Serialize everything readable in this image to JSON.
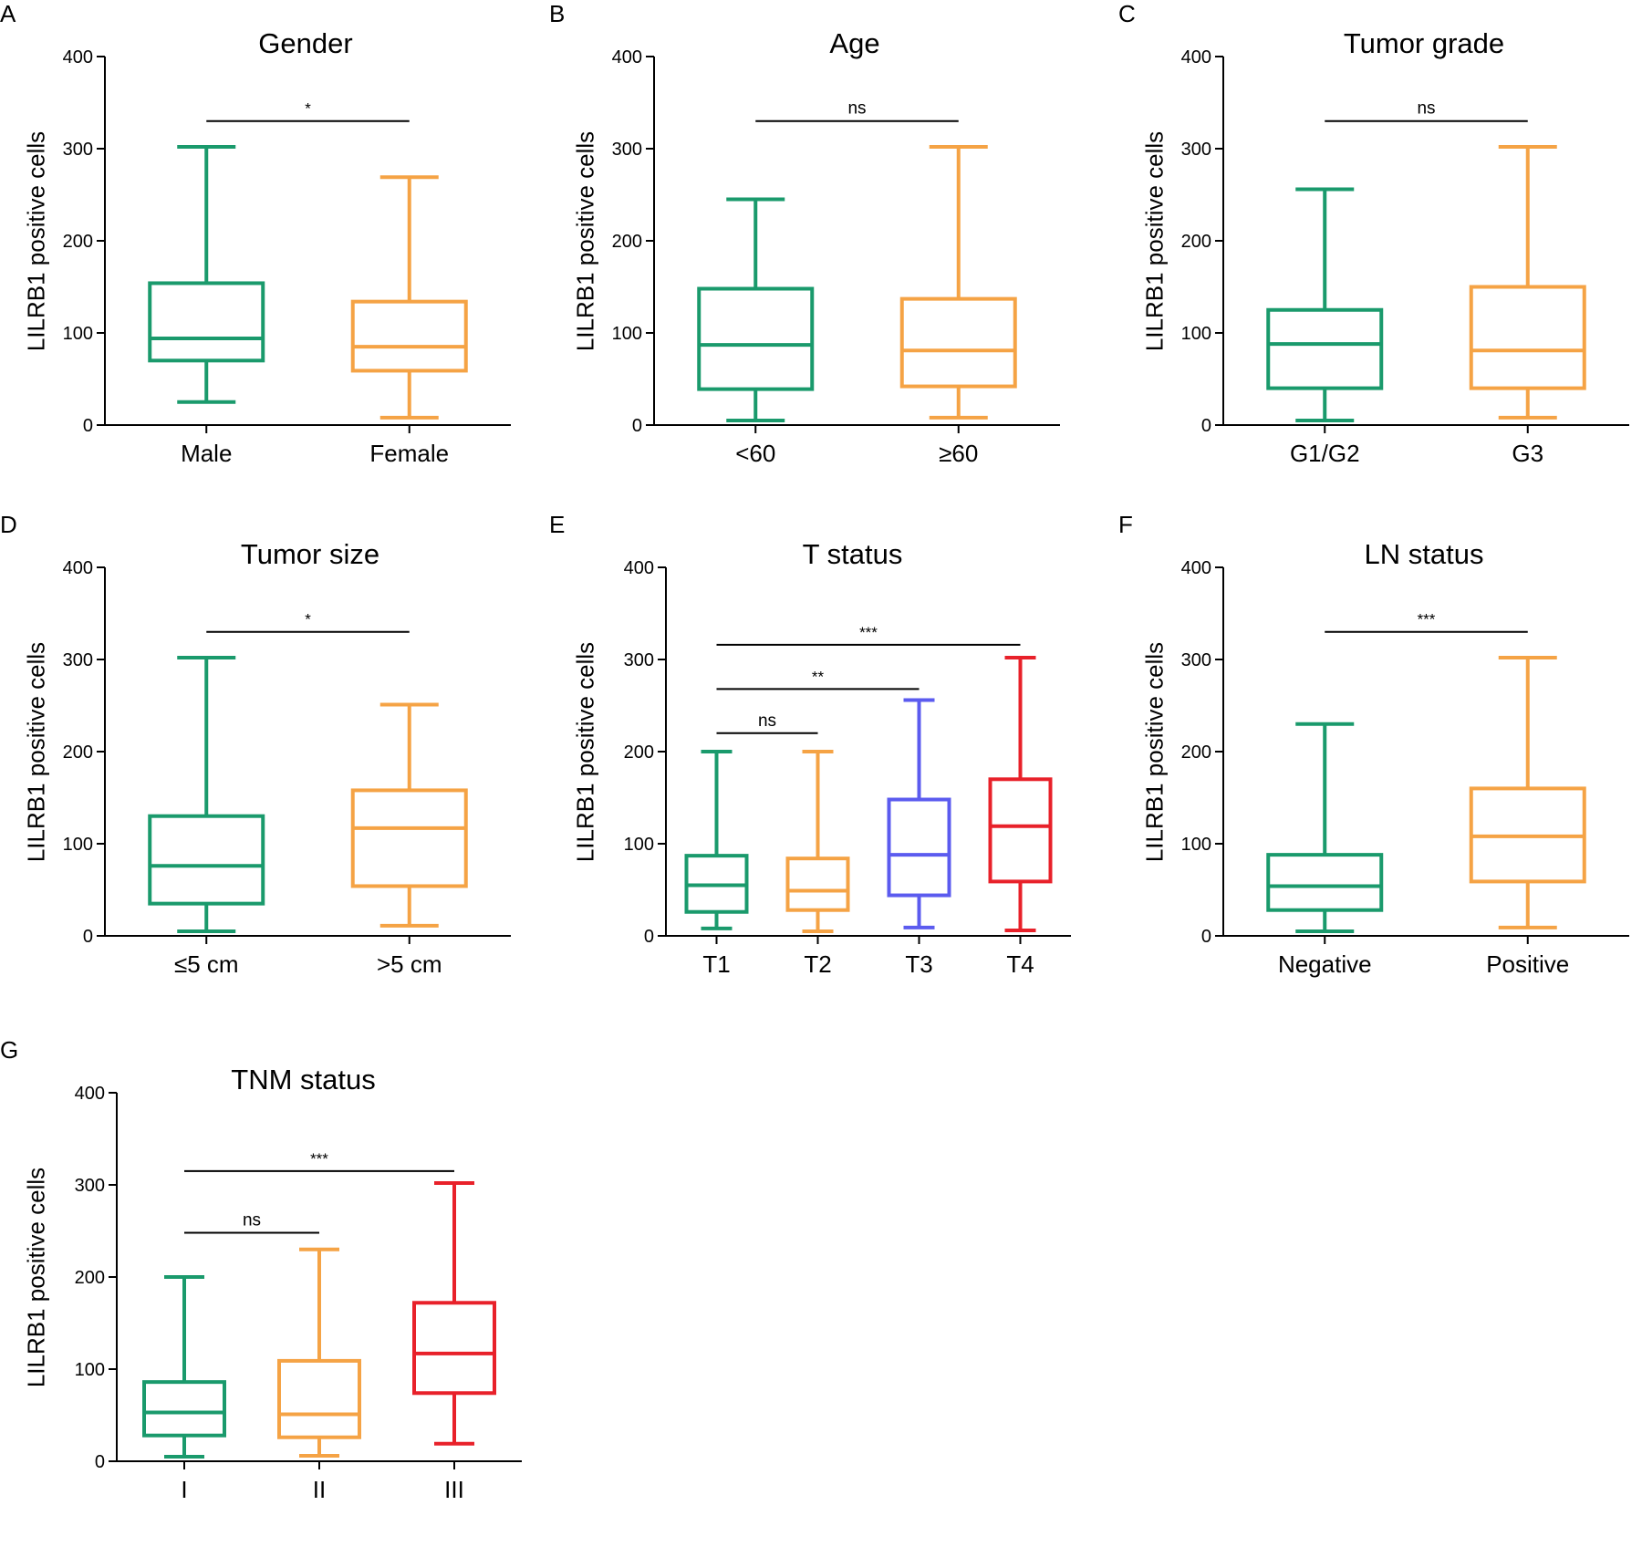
{
  "chart_data": [
    {
      "panel": "A",
      "type": "box",
      "title": "Gender",
      "ylabel": "LILRB1 positive cells",
      "ylim": [
        0,
        400
      ],
      "yticks": [
        0,
        100,
        200,
        300,
        400
      ],
      "categories": [
        "Male",
        "Female"
      ],
      "colors": [
        "#1a9a6c",
        "#f5a345"
      ],
      "boxes": [
        {
          "min": 25,
          "q1": 70,
          "median": 94,
          "q3": 154,
          "max": 302
        },
        {
          "min": 8,
          "q1": 59,
          "median": 85,
          "q3": 134,
          "max": 269
        }
      ],
      "comparisons": [
        {
          "from": 0,
          "to": 1,
          "label": "*",
          "y": 330
        }
      ]
    },
    {
      "panel": "B",
      "type": "box",
      "title": "Age",
      "ylabel": "LILRB1 positive cells",
      "ylim": [
        0,
        400
      ],
      "yticks": [
        0,
        100,
        200,
        300,
        400
      ],
      "categories": [
        "<60",
        "≥60"
      ],
      "colors": [
        "#1a9a6c",
        "#f5a345"
      ],
      "boxes": [
        {
          "min": 5,
          "q1": 39,
          "median": 87,
          "q3": 148,
          "max": 245
        },
        {
          "min": 8,
          "q1": 42,
          "median": 81,
          "q3": 137,
          "max": 302
        }
      ],
      "comparisons": [
        {
          "from": 0,
          "to": 1,
          "label": "ns",
          "y": 330
        }
      ]
    },
    {
      "panel": "C",
      "type": "box",
      "title": "Tumor grade",
      "ylabel": "LILRB1 positive cells",
      "ylim": [
        0,
        400
      ],
      "yticks": [
        0,
        100,
        200,
        300,
        400
      ],
      "categories": [
        "G1/G2",
        "G3"
      ],
      "colors": [
        "#1a9a6c",
        "#f5a345"
      ],
      "boxes": [
        {
          "min": 5,
          "q1": 40,
          "median": 88,
          "q3": 125,
          "max": 256
        },
        {
          "min": 8,
          "q1": 40,
          "median": 81,
          "q3": 150,
          "max": 302
        }
      ],
      "comparisons": [
        {
          "from": 0,
          "to": 1,
          "label": "ns",
          "y": 330
        }
      ]
    },
    {
      "panel": "D",
      "type": "box",
      "title": "Tumor size",
      "ylabel": "LILRB1 positive cells",
      "ylim": [
        0,
        400
      ],
      "yticks": [
        0,
        100,
        200,
        300,
        400
      ],
      "categories": [
        "≤5 cm",
        ">5 cm"
      ],
      "colors": [
        "#1a9a6c",
        "#f5a345"
      ],
      "boxes": [
        {
          "min": 5,
          "q1": 35,
          "median": 76,
          "q3": 130,
          "max": 302
        },
        {
          "min": 11,
          "q1": 54,
          "median": 117,
          "q3": 158,
          "max": 251
        }
      ],
      "comparisons": [
        {
          "from": 0,
          "to": 1,
          "label": "*",
          "y": 330
        }
      ]
    },
    {
      "panel": "E",
      "type": "box",
      "title": "T status",
      "ylabel": "LILRB1 positive cells",
      "ylim": [
        0,
        400
      ],
      "yticks": [
        0,
        100,
        200,
        300,
        400
      ],
      "categories": [
        "T1",
        "T2",
        "T3",
        "T4"
      ],
      "colors": [
        "#1a9a6c",
        "#f5a345",
        "#5b5bef",
        "#e8212a"
      ],
      "boxes": [
        {
          "min": 8,
          "q1": 26,
          "median": 55,
          "q3": 87,
          "max": 200
        },
        {
          "min": 5,
          "q1": 28,
          "median": 49,
          "q3": 84,
          "max": 200
        },
        {
          "min": 9,
          "q1": 44,
          "median": 88,
          "q3": 148,
          "max": 256
        },
        {
          "min": 6,
          "q1": 59,
          "median": 119,
          "q3": 170,
          "max": 302
        }
      ],
      "comparisons": [
        {
          "from": 0,
          "to": 1,
          "label": "ns",
          "y": 220
        },
        {
          "from": 0,
          "to": 2,
          "label": "**",
          "y": 268
        },
        {
          "from": 0,
          "to": 3,
          "label": "***",
          "y": 316
        }
      ]
    },
    {
      "panel": "F",
      "type": "box",
      "title": "LN status",
      "ylabel": "LILRB1 positive cells",
      "ylim": [
        0,
        400
      ],
      "yticks": [
        0,
        100,
        200,
        300,
        400
      ],
      "categories": [
        "Negative",
        "Positive"
      ],
      "colors": [
        "#1a9a6c",
        "#f5a345"
      ],
      "boxes": [
        {
          "min": 5,
          "q1": 28,
          "median": 54,
          "q3": 88,
          "max": 230
        },
        {
          "min": 9,
          "q1": 59,
          "median": 108,
          "q3": 160,
          "max": 302
        }
      ],
      "comparisons": [
        {
          "from": 0,
          "to": 1,
          "label": "***",
          "y": 330
        }
      ]
    },
    {
      "panel": "G",
      "type": "box",
      "title": "TNM status",
      "ylabel": "LILRB1 positive cells",
      "ylim": [
        0,
        400
      ],
      "yticks": [
        0,
        100,
        200,
        300,
        400
      ],
      "categories": [
        "I",
        "II",
        "III"
      ],
      "colors": [
        "#1a9a6c",
        "#f5a345",
        "#e8212a"
      ],
      "boxes": [
        {
          "min": 5,
          "q1": 28,
          "median": 53,
          "q3": 86,
          "max": 200
        },
        {
          "min": 6,
          "q1": 26,
          "median": 51,
          "q3": 109,
          "max": 230
        },
        {
          "min": 19,
          "q1": 74,
          "median": 117,
          "q3": 172,
          "max": 302
        }
      ],
      "comparisons": [
        {
          "from": 0,
          "to": 1,
          "label": "ns",
          "y": 248
        },
        {
          "from": 0,
          "to": 2,
          "label": "***",
          "y": 315
        }
      ]
    }
  ]
}
